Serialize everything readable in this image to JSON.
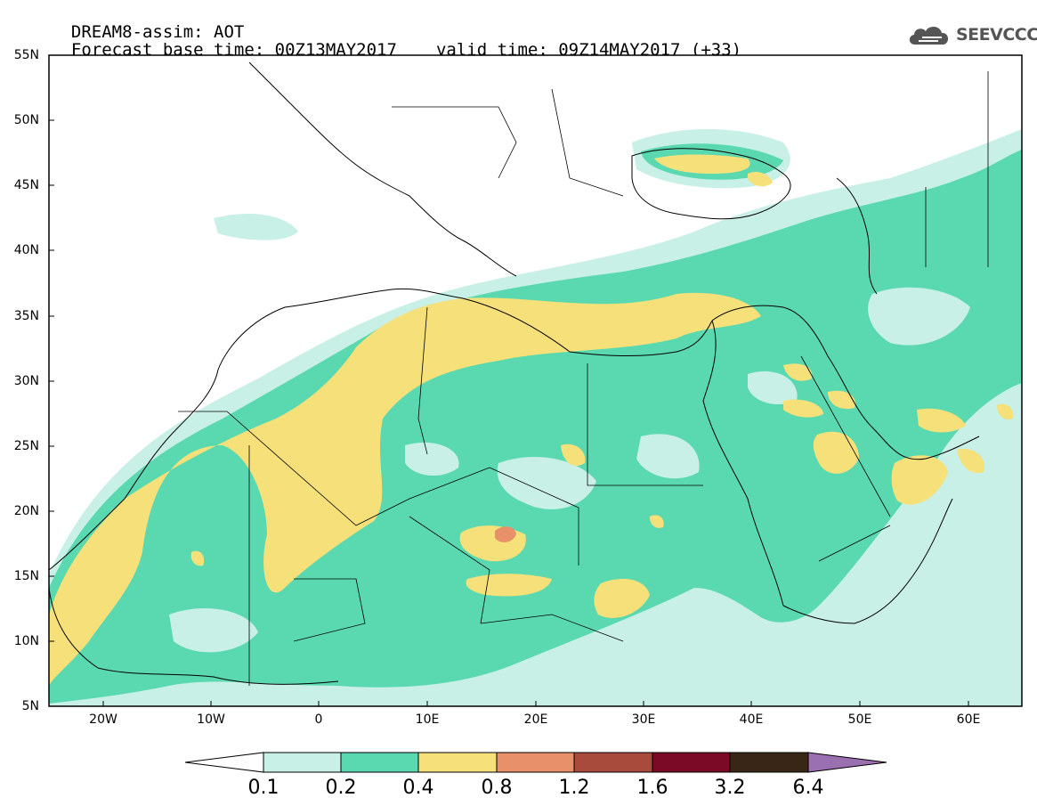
{
  "header": {
    "line1": "DREAM8-assim: AOT",
    "base_time": "Forecast base time: 00Z13MAY2017",
    "valid_time": "valid time: 09Z14MAY2017 (+33)"
  },
  "logo": {
    "text": "SEEVCCC",
    "icon": "cloud-logo-icon"
  },
  "axes": {
    "lat_labels": [
      "55N",
      "50N",
      "45N",
      "40N",
      "35N",
      "30N",
      "25N",
      "20N",
      "15N",
      "10N",
      "5N"
    ],
    "lon_labels": [
      "20W",
      "10W",
      "0",
      "10E",
      "20E",
      "30E",
      "40E",
      "50E",
      "60E"
    ],
    "lon_range": [
      -25,
      65
    ],
    "lat_range": [
      5,
      55
    ]
  },
  "colorbar": {
    "labels": [
      "0.1",
      "0.2",
      "0.4",
      "0.8",
      "1.2",
      "1.6",
      "3.2",
      "6.4"
    ],
    "colors": {
      "below": "#ffffff",
      "c1": "#c9f0e6",
      "c2": "#5ad9b0",
      "c3": "#f5e07a",
      "c4": "#e8906a",
      "c5": "#a84a3c",
      "c6": "#7a0a26",
      "c7": "#3a2616",
      "above": "#9a70b0"
    }
  }
}
